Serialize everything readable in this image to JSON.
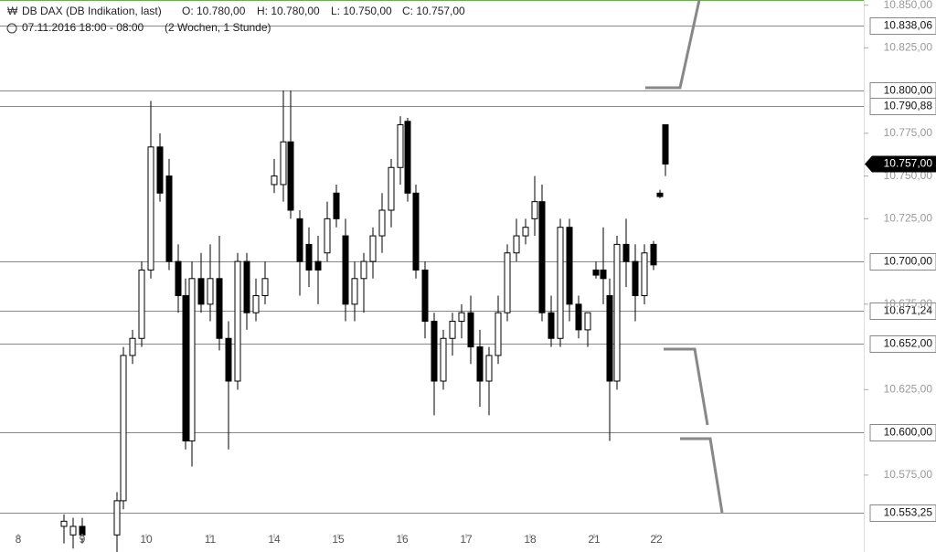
{
  "chart_data": {
    "type": "candlestick",
    "title": "DB DAX (DB Indikation, last)",
    "quote": [
      "O: 10.780,00",
      "H: 10.780,00",
      "L: 10.750,00",
      "C: 10.757,00"
    ],
    "period": "07.11.2016 18:00 - 08:00",
    "interval": "(2 Wochen, 1 Stunde)",
    "x": [
      7,
      8,
      9,
      12.8,
      13.5,
      14.5,
      15.5,
      16.5,
      17.5,
      18.5,
      19.5,
      20.3,
      21,
      22,
      23,
      24,
      25,
      26,
      27,
      28,
      29,
      30,
      31,
      31.8,
      32.8,
      33.8,
      34.8,
      35.8,
      36.8,
      37.8,
      38.8,
      39.8,
      40.8,
      41.8,
      42.8,
      43.8,
      44.6,
      45.5,
      46.5,
      47.5,
      48.5,
      49.5,
      50.5,
      51.5,
      52.5,
      53.5,
      54.5,
      55.5,
      56.5,
      57.5,
      58.5,
      59.3,
      60.3,
      61.3,
      62.3,
      63.3,
      64.3,
      65.2,
      66,
      66.7,
      67.5,
      68.5,
      69.5,
      70.5,
      71.5,
      72.2,
      72.8
    ],
    "open": [
      10545,
      10540,
      10545,
      10540,
      10560,
      10645,
      10655,
      10695,
      10767,
      10750,
      10700,
      10680,
      10595,
      10690,
      10675,
      10690,
      10655,
      10630,
      10700,
      10670,
      10680,
      10745,
      10745,
      10770,
      10725,
      10710,
      10700,
      10705,
      10740,
      10715,
      10675,
      10690,
      10700,
      10715,
      10730,
      10755,
      10782,
      10740,
      10695,
      10665,
      10630,
      10655,
      10665,
      10670,
      10650,
      10630,
      10645,
      10670,
      10705,
      10715,
      10725,
      10735,
      10670,
      10655,
      10720,
      10675,
      10660,
      10695,
      10695,
      10680,
      10630,
      10710,
      10700,
      10680,
      10710,
      10740,
      10780
    ],
    "high": [
      10552,
      10550,
      10550,
      10565,
      10650,
      10660,
      10700,
      10794,
      10775,
      10760,
      10710,
      10690,
      10700,
      10705,
      10710,
      10715,
      10665,
      10705,
      10705,
      10690,
      10700,
      10760,
      10800,
      10800,
      10730,
      10720,
      10715,
      10735,
      10745,
      10725,
      10700,
      10705,
      10720,
      10740,
      10760,
      10785,
      10784,
      10745,
      10700,
      10670,
      10660,
      10670,
      10675,
      10680,
      10660,
      10650,
      10680,
      10710,
      10725,
      10725,
      10750,
      10745,
      10680,
      10725,
      10725,
      10680,
      10670,
      10700,
      10720,
      10690,
      10715,
      10725,
      10710,
      10710,
      10712,
      10742,
      10780
    ],
    "low": [
      10535,
      10532,
      10535,
      10530,
      10555,
      10640,
      10650,
      10690,
      10735,
      10695,
      10670,
      10590,
      10580,
      10670,
      10665,
      10648,
      10590,
      10625,
      10660,
      10665,
      10675,
      10740,
      10735,
      10725,
      10680,
      10685,
      10675,
      10700,
      10720,
      10665,
      10665,
      10670,
      10690,
      10705,
      10720,
      10745,
      10735,
      10690,
      10655,
      10610,
      10625,
      10645,
      10655,
      10640,
      10615,
      10610,
      10640,
      10665,
      10700,
      10710,
      10715,
      10665,
      10650,
      10650,
      10665,
      10655,
      10650,
      10690,
      10675,
      10595,
      10625,
      10685,
      10665,
      10675,
      10695,
      10737,
      10750
    ],
    "close": [
      10548,
      10545,
      10540,
      10560,
      10645,
      10655,
      10695,
      10767,
      10740,
      10700,
      10680,
      10595,
      10690,
      10675,
      10690,
      10655,
      10630,
      10700,
      10670,
      10680,
      10690,
      10750,
      10770,
      10730,
      10700,
      10695,
      10695,
      10725,
      10725,
      10675,
      10690,
      10700,
      10715,
      10730,
      10755,
      10780,
      10740,
      10695,
      10665,
      10630,
      10655,
      10665,
      10670,
      10650,
      10630,
      10645,
      10670,
      10705,
      10715,
      10720,
      10735,
      10670,
      10655,
      10720,
      10675,
      10660,
      10670,
      10692,
      10690,
      10630,
      10710,
      10700,
      10680,
      10705,
      10698,
      10738,
      10757
    ],
    "xlim": [
      0,
      94.5
    ],
    "xticks": [
      {
        "value": 2,
        "label": "8"
      },
      {
        "value": 9,
        "label": "9"
      },
      {
        "value": 16,
        "label": "10"
      },
      {
        "value": 23,
        "label": "11"
      },
      {
        "value": 30,
        "label": "14"
      },
      {
        "value": 37,
        "label": "15"
      },
      {
        "value": 44,
        "label": "16"
      },
      {
        "value": 51,
        "label": "17"
      },
      {
        "value": 58,
        "label": "18"
      },
      {
        "value": 65,
        "label": "21"
      },
      {
        "value": 71.8,
        "label": "22"
      }
    ],
    "ylim": [
      10530,
      10853
    ],
    "yticks": [
      {
        "value": 10850,
        "label": "10.850,00"
      },
      {
        "value": 10825,
        "label": "10.825,00"
      },
      {
        "value": 10775,
        "label": "10.775,00"
      },
      {
        "value": 10750,
        "label": "10.750,00"
      },
      {
        "value": 10725,
        "label": "10.725,00"
      },
      {
        "value": 10675,
        "label": "10.675,00"
      },
      {
        "value": 10625,
        "label": "10.625,00"
      },
      {
        "value": 10575,
        "label": "10.575,00"
      }
    ],
    "levels": [
      {
        "value": 10838.06,
        "label": "10.838,06"
      },
      {
        "value": 10800,
        "label": "10.800,00"
      },
      {
        "value": 10790.88,
        "label": "10.790,88"
      },
      {
        "value": 10700,
        "label": "10.700,00"
      },
      {
        "value": 10671.24,
        "label": "10.671,24"
      },
      {
        "value": 10652,
        "label": "10.652,00"
      },
      {
        "value": 10600,
        "label": "10.600,00"
      },
      {
        "value": 10553.25,
        "label": "10.553,25"
      }
    ],
    "last_price": {
      "value": 10757,
      "label": "10.757,00"
    },
    "up_color": "#ffffff",
    "down_color": "#000000"
  }
}
